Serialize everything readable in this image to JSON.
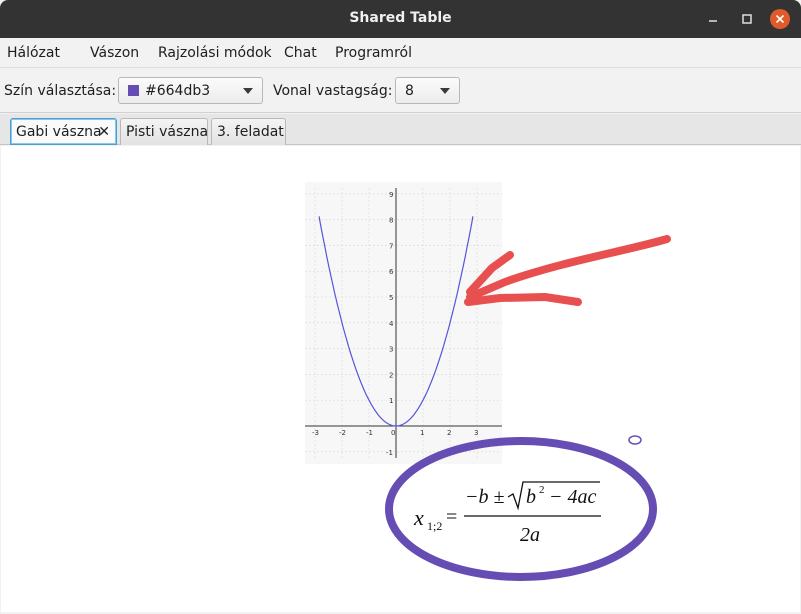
{
  "window": {
    "title": "Shared Table",
    "minimize_icon": "minimize-icon",
    "maximize_icon": "maximize-icon",
    "close_icon": "close-icon",
    "close_color": "#e05a2b"
  },
  "menu": {
    "items": [
      "Hálózat",
      "Vászon",
      "Rajzolási módok",
      "Chat",
      "Programról"
    ]
  },
  "toolbar": {
    "color_label": "Szín választása:",
    "color_value": "#664db3",
    "color_swatch": "#664db3",
    "width_label": "Vonal vastagság:",
    "width_value": "8"
  },
  "tabs": [
    {
      "label": "Gabi vászna",
      "active": true,
      "closable": true,
      "close_glyph": "✕"
    },
    {
      "label": "Pisti vászna",
      "active": false
    },
    {
      "label": "3. feladat",
      "active": false
    }
  ],
  "canvas": {
    "graph_image": {
      "x_ticks": [
        "-3",
        "-2",
        "-1",
        "0",
        "1",
        "2",
        "3"
      ],
      "y_ticks": [
        "9",
        "8",
        "7",
        "6",
        "5",
        "4",
        "3",
        "2",
        "1",
        "-1"
      ],
      "curve_color": "#5555dd"
    },
    "formula_image": {
      "lhs": "x",
      "subscript": "1;2",
      "equals": "=",
      "numerator_pre": "−b ±",
      "radicand_base": "b",
      "radicand_exp": "2",
      "radicand_rest": "− 4ac",
      "denominator": "2a"
    },
    "strokes": {
      "arrow_color": "#e84f4f",
      "ellipse_color": "#664db3",
      "small_circle_color": "#664db3"
    }
  }
}
